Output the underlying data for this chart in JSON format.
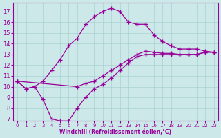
{
  "xlabel": "Windchill (Refroidissement éolien,°C)",
  "bg_color": "#cce8e8",
  "line_color": "#990099",
  "xlim": [
    -0.5,
    23.5
  ],
  "ylim": [
    6.8,
    17.8
  ],
  "yticks": [
    7,
    8,
    9,
    10,
    11,
    12,
    13,
    14,
    15,
    16,
    17
  ],
  "xticks": [
    0,
    1,
    2,
    3,
    4,
    5,
    6,
    7,
    8,
    9,
    10,
    11,
    12,
    13,
    14,
    15,
    16,
    17,
    18,
    19,
    20,
    21,
    22,
    23
  ],
  "curve_upper_x": [
    0,
    1,
    2,
    3,
    4,
    5,
    6,
    7,
    8,
    9,
    10,
    11,
    12,
    13,
    14,
    15,
    16,
    17,
    18,
    19,
    20,
    21,
    22,
    23
  ],
  "curve_upper_y": [
    10.5,
    9.8,
    10.0,
    10.5,
    11.5,
    12.5,
    13.8,
    14.5,
    15.8,
    16.5,
    17.0,
    17.3,
    17.0,
    16.0,
    15.8,
    15.8,
    14.8,
    14.2,
    13.8,
    13.5,
    13.5,
    13.5,
    13.3,
    13.2
  ],
  "curve_lower_x": [
    0,
    1,
    2,
    3,
    4,
    5,
    6,
    7,
    8,
    9,
    10,
    11,
    12,
    13,
    14,
    15,
    16,
    17,
    18,
    19,
    20,
    21,
    22,
    23
  ],
  "curve_lower_y": [
    10.5,
    9.8,
    10.0,
    8.8,
    7.0,
    6.8,
    6.8,
    8.0,
    9.0,
    9.8,
    10.2,
    10.8,
    11.5,
    12.2,
    12.8,
    13.0,
    13.0,
    13.0,
    13.0,
    13.0,
    13.0,
    13.0,
    13.2,
    13.2
  ],
  "curve_mid_x": [
    0,
    7,
    8,
    9,
    10,
    11,
    12,
    13,
    14,
    15,
    16,
    17,
    18,
    19,
    20,
    21,
    22,
    23
  ],
  "curve_mid_y": [
    10.5,
    10.0,
    10.3,
    10.5,
    11.0,
    11.5,
    12.0,
    12.5,
    13.0,
    13.3,
    13.2,
    13.1,
    13.1,
    13.0,
    13.0,
    13.0,
    13.2,
    13.2
  ]
}
